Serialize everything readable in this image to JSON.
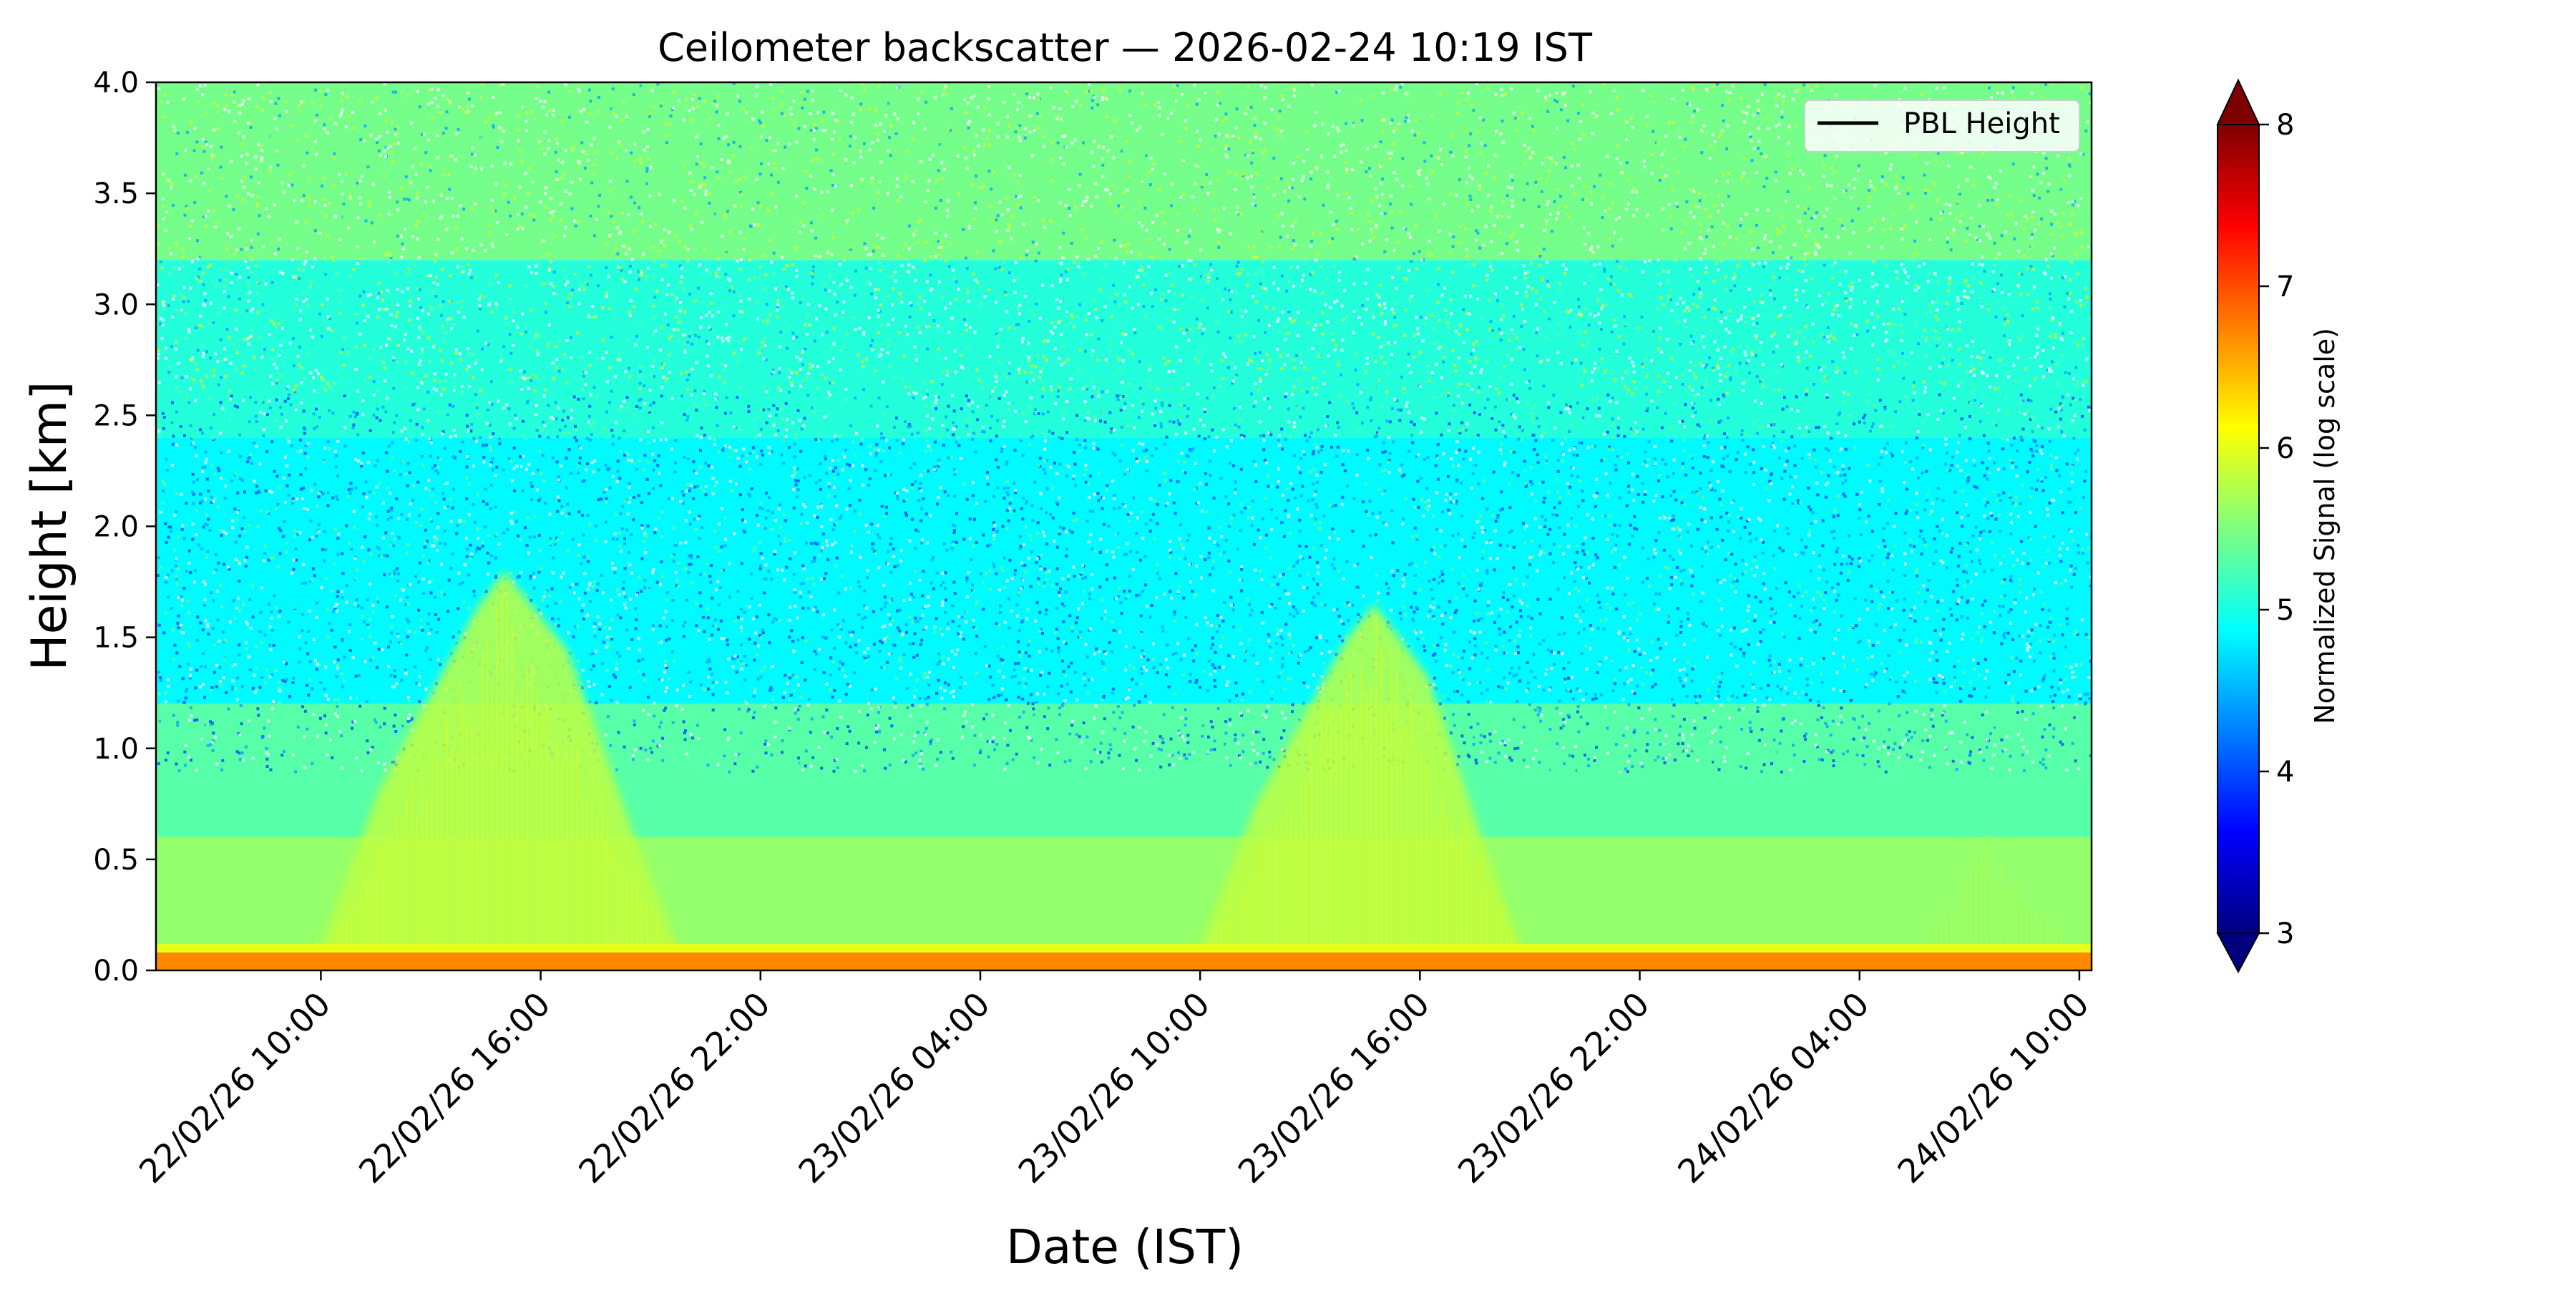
{
  "chart_data": {
    "type": "heatmap",
    "title": "Ceilometer backscatter — 2026-02-24 10:19 IST",
    "xlabel": "Date (IST)",
    "ylabel": "Height [km]",
    "x_range": [
      "2026-02-22 05:30",
      "2026-02-24 10:20"
    ],
    "y_range": [
      0.0,
      4.0
    ],
    "x_ticks": [
      {
        "time": "2026-02-22 10:00",
        "label": "22/02/26 10:00"
      },
      {
        "time": "2026-02-22 16:00",
        "label": "22/02/26 16:00"
      },
      {
        "time": "2026-02-22 22:00",
        "label": "22/02/26 22:00"
      },
      {
        "time": "2026-02-23 04:00",
        "label": "23/02/26 04:00"
      },
      {
        "time": "2026-02-23 10:00",
        "label": "23/02/26 10:00"
      },
      {
        "time": "2026-02-23 16:00",
        "label": "23/02/26 16:00"
      },
      {
        "time": "2026-02-23 22:00",
        "label": "23/02/26 22:00"
      },
      {
        "time": "2026-02-24 04:00",
        "label": "24/02/26 04:00"
      },
      {
        "time": "2026-02-24 10:00",
        "label": "24/02/26 10:00"
      }
    ],
    "y_ticks": [
      {
        "value": 0.0,
        "label": "0.0"
      },
      {
        "value": 0.5,
        "label": "0.5"
      },
      {
        "value": 1.0,
        "label": "1.0"
      },
      {
        "value": 1.5,
        "label": "1.5"
      },
      {
        "value": 2.0,
        "label": "2.0"
      },
      {
        "value": 2.5,
        "label": "2.5"
      },
      {
        "value": 3.0,
        "label": "3.0"
      },
      {
        "value": 3.5,
        "label": "3.5"
      },
      {
        "value": 4.0,
        "label": "4.0"
      }
    ],
    "colorbar": {
      "label": "Normalized Signal (log scale)",
      "range": [
        3,
        8
      ],
      "colormap": "jet",
      "extend": "both",
      "ticks": [
        {
          "value": 3,
          "label": "3"
        },
        {
          "value": 4,
          "label": "4"
        },
        {
          "value": 5,
          "label": "5"
        },
        {
          "value": 6,
          "label": "6"
        },
        {
          "value": 7,
          "label": "7"
        },
        {
          "value": 8,
          "label": "8"
        }
      ]
    },
    "legend": {
      "placement": "upper-right",
      "entries": [
        {
          "label": "PBL Height",
          "color": "#000000",
          "style": "solid line"
        }
      ]
    },
    "surface_layer": {
      "height_top_km": 0.1,
      "level": 6.7
    },
    "background_level_near_surface": 5.3,
    "background_level_aloft": 5.2,
    "daytime_plumes": [
      {
        "start": "2026-02-22 09:45",
        "peak": "2026-02-22 15:00",
        "end": "2026-02-22 20:00",
        "peak_height_km": 1.8,
        "level": 5.8
      },
      {
        "start": "2026-02-23 09:45",
        "peak": "2026-02-23 14:45",
        "end": "2026-02-23 19:00",
        "peak_height_km": 1.65,
        "level": 5.8
      },
      {
        "start": "2026-02-24 05:00",
        "peak": "2026-02-24 07:30",
        "end": "2026-02-24 10:20",
        "peak_height_km": 0.6,
        "level": 5.6
      }
    ],
    "grid": false
  }
}
